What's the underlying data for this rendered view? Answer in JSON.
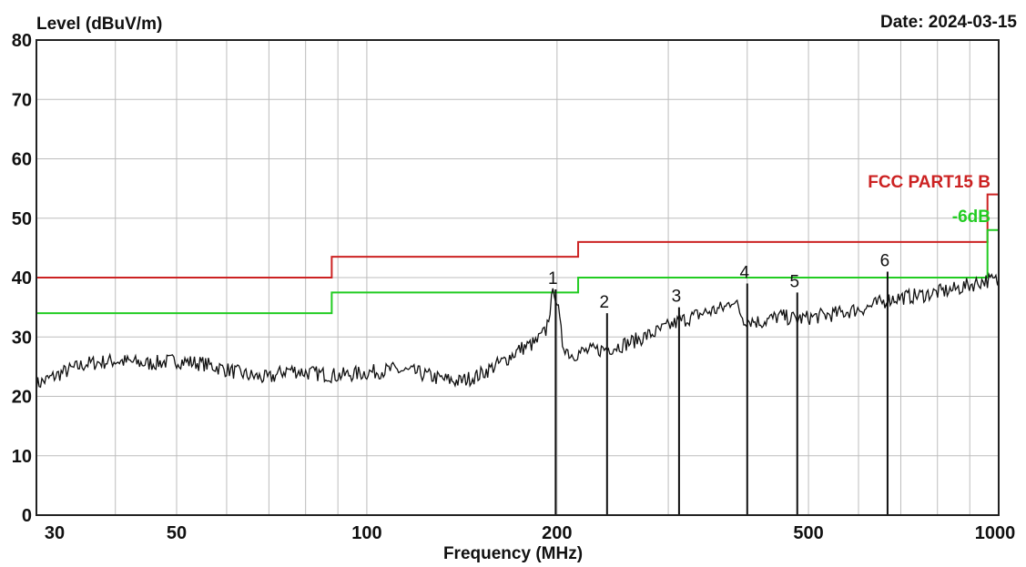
{
  "header": {
    "ylabel": "Level (dBuV/m)",
    "date": "Date: 2024-03-15"
  },
  "chart_data": {
    "type": "line",
    "title": "",
    "xlabel": "Frequency (MHz)",
    "ylabel": "Level (dBuV/m)",
    "x_scale": "log",
    "xlim": [
      30,
      1000
    ],
    "ylim": [
      0,
      80
    ],
    "grid": true,
    "x_tick_labels": [
      "30",
      "50",
      "100",
      "200",
      "500",
      "1000"
    ],
    "x_ticks": [
      30,
      50,
      100,
      200,
      500,
      1000
    ],
    "y_tick_labels": [
      "0",
      "10",
      "20",
      "30",
      "40",
      "50",
      "60",
      "70",
      "80"
    ],
    "y_ticks": [
      0,
      10,
      20,
      30,
      40,
      50,
      60,
      70,
      80
    ],
    "limit_lines": [
      {
        "name": "FCC PART15 B",
        "color": "#cc2222",
        "steps": [
          [
            30,
            40
          ],
          [
            88,
            40
          ],
          [
            88,
            43.5
          ],
          [
            216,
            43.5
          ],
          [
            216,
            46
          ],
          [
            960,
            46
          ],
          [
            960,
            54
          ],
          [
            1000,
            54
          ]
        ]
      },
      {
        "name": "-6dB",
        "color": "#22cc22",
        "steps": [
          [
            30,
            34
          ],
          [
            88,
            34
          ],
          [
            88,
            37.5
          ],
          [
            216,
            37.5
          ],
          [
            216,
            40
          ],
          [
            960,
            40
          ],
          [
            960,
            48
          ],
          [
            1000,
            48
          ]
        ]
      }
    ],
    "trace": {
      "color": "#111111",
      "points": [
        [
          30,
          22
        ],
        [
          33,
          24
        ],
        [
          36,
          25.5
        ],
        [
          40,
          26
        ],
        [
          45,
          25.5
        ],
        [
          50,
          26
        ],
        [
          55,
          25.5
        ],
        [
          60,
          24.5
        ],
        [
          65,
          23.5
        ],
        [
          70,
          23
        ],
        [
          75,
          24.5
        ],
        [
          80,
          24
        ],
        [
          90,
          23.5
        ],
        [
          100,
          24
        ],
        [
          110,
          24.5
        ],
        [
          120,
          24
        ],
        [
          130,
          23
        ],
        [
          140,
          22.5
        ],
        [
          150,
          23.5
        ],
        [
          165,
          26
        ],
        [
          175,
          28
        ],
        [
          185,
          29
        ],
        [
          192,
          31
        ],
        [
          196,
          36
        ],
        [
          198,
          38
        ],
        [
          200,
          36
        ],
        [
          204,
          29
        ],
        [
          210,
          27
        ],
        [
          220,
          27.5
        ],
        [
          240,
          28
        ],
        [
          260,
          29
        ],
        [
          290,
          31
        ],
        [
          310,
          32.5
        ],
        [
          340,
          34
        ],
        [
          370,
          35
        ],
        [
          380,
          36.5
        ],
        [
          395,
          33
        ],
        [
          420,
          32.5
        ],
        [
          450,
          33.5
        ],
        [
          480,
          33
        ],
        [
          520,
          33.5
        ],
        [
          560,
          34
        ],
        [
          620,
          35
        ],
        [
          680,
          36.5
        ],
        [
          750,
          37
        ],
        [
          850,
          38
        ],
        [
          950,
          39.5
        ],
        [
          1000,
          39.5
        ]
      ]
    },
    "markers": [
      {
        "label": "1",
        "freq": 199,
        "level": 38
      },
      {
        "label": "2",
        "freq": 240,
        "level": 34
      },
      {
        "label": "3",
        "freq": 312,
        "level": 35
      },
      {
        "label": "4",
        "freq": 400,
        "level": 39
      },
      {
        "label": "5",
        "freq": 480,
        "level": 37.5
      },
      {
        "label": "6",
        "freq": 667,
        "level": 41
      }
    ]
  }
}
